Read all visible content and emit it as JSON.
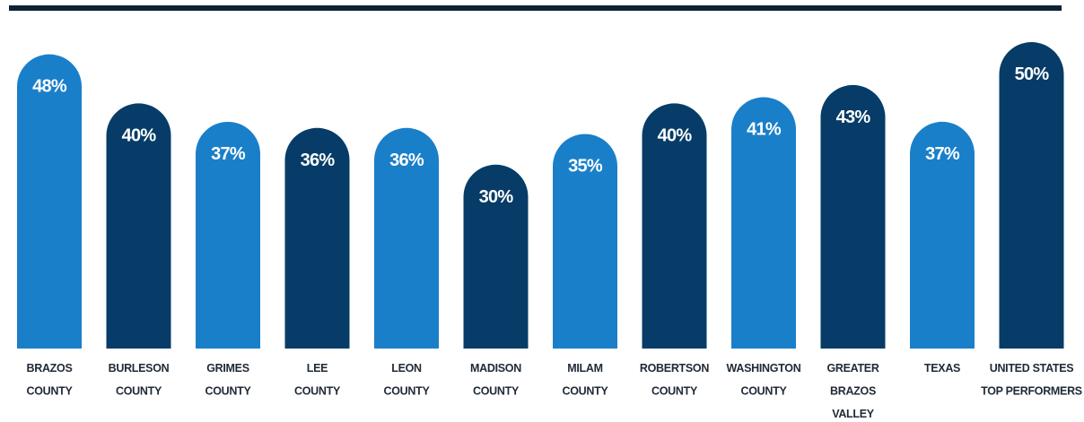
{
  "chart_data": {
    "type": "bar",
    "title": "",
    "xlabel": "",
    "ylabel": "",
    "ylim": [
      0,
      50
    ],
    "grid": false,
    "legend": "none",
    "value_suffix": "%",
    "colors": {
      "light": "#1a7fc9",
      "dark": "#063c67",
      "rule": "#0d2236",
      "label": "#1f2a36"
    },
    "categories": [
      [
        "BRAZOS",
        "COUNTY"
      ],
      [
        "BURLESON",
        "COUNTY"
      ],
      [
        "GRIMES",
        "COUNTY"
      ],
      [
        "LEE",
        "COUNTY"
      ],
      [
        "LEON",
        "COUNTY"
      ],
      [
        "MADISON",
        "COUNTY"
      ],
      [
        "MILAM",
        "COUNTY"
      ],
      [
        "ROBERTSON",
        "COUNTY"
      ],
      [
        "WASHINGTON",
        "COUNTY"
      ],
      [
        "GREATER",
        "BRAZOS",
        "VALLEY"
      ],
      [
        "TEXAS"
      ],
      [
        "UNITED STATES",
        "TOP PERFORMERS"
      ]
    ],
    "values": [
      48,
      40,
      37,
      36,
      36,
      30,
      35,
      40,
      41,
      43,
      37,
      50
    ],
    "shades": [
      "light",
      "dark",
      "light",
      "dark",
      "light",
      "dark",
      "light",
      "dark",
      "light",
      "dark",
      "light",
      "dark"
    ]
  }
}
